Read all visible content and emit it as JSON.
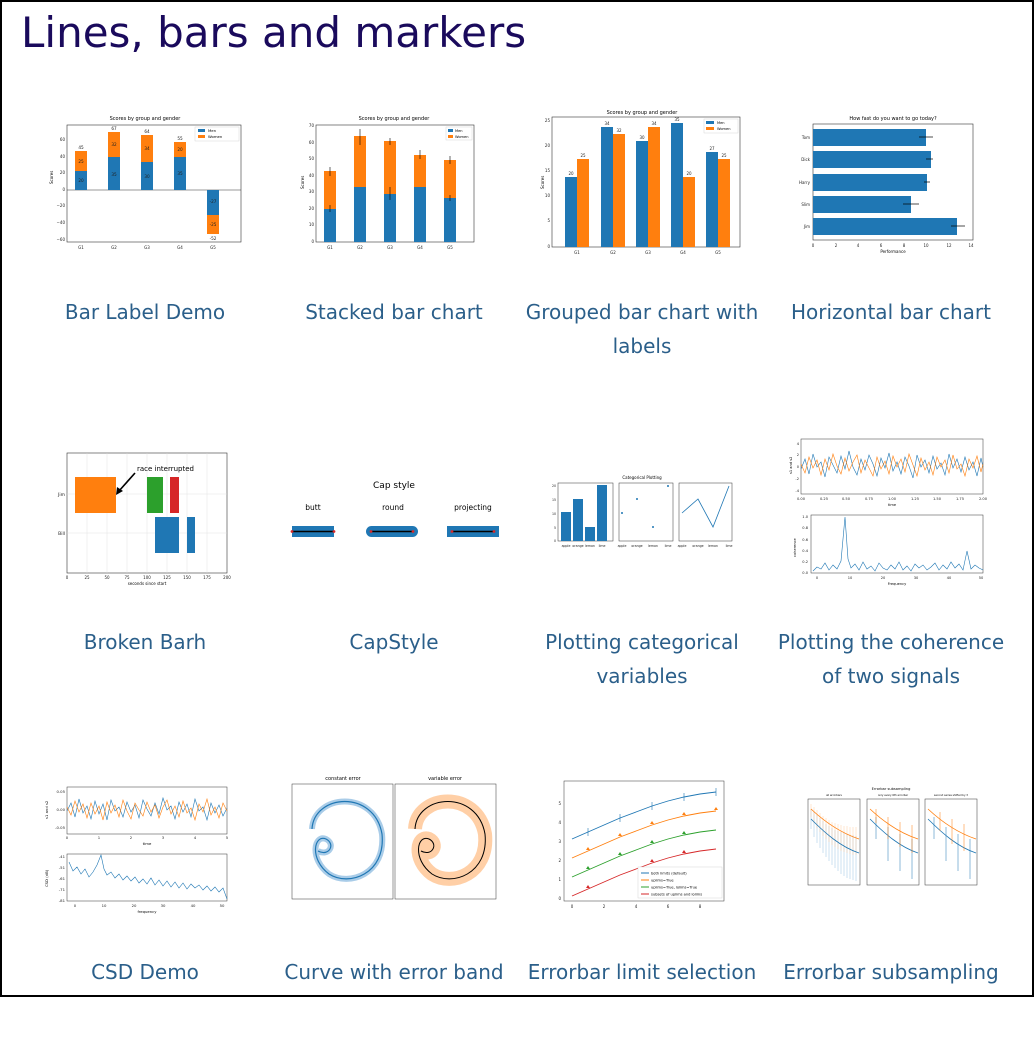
{
  "page": {
    "title": "Lines, bars and markers"
  },
  "colors": {
    "blue": "#1f77b4",
    "orange": "#ff7f0e",
    "green": "#2ca02c",
    "red": "#d62728",
    "link": "#2b5f8a",
    "title": "#1a0a5c"
  },
  "gallery": [
    {
      "caption": "Bar Label Demo",
      "chart": {
        "title": "Scores by group and gender",
        "ylabel": "Scores",
        "groups": [
          "G1",
          "G2",
          "G3",
          "G4",
          "G5"
        ],
        "ticks_y": [
          "60",
          "40",
          "20",
          "0",
          "−20",
          "−40",
          "−60"
        ],
        "men": [
          20,
          35,
          30,
          35,
          -27
        ],
        "women": [
          25,
          32,
          34,
          20,
          -25
        ],
        "totals": [
          "45",
          "67",
          "64",
          "55",
          "-52"
        ],
        "legend": [
          "Men",
          "Women"
        ]
      }
    },
    {
      "caption": "Stacked bar chart",
      "chart": {
        "title": "Scores by group and gender",
        "ylabel": "Scores",
        "groups": [
          "G1",
          "G2",
          "G3",
          "G4",
          "G5"
        ],
        "ticks_y": [
          "70",
          "60",
          "50",
          "40",
          "30",
          "20",
          "10",
          "0"
        ],
        "legend": [
          "Men",
          "Women"
        ]
      }
    },
    {
      "caption": "Grouped bar chart with labels",
      "chart": {
        "title": "Scores by group and gender",
        "ylabel": "Scores",
        "groups": [
          "G1",
          "G2",
          "G3",
          "G4",
          "G5"
        ],
        "men": [
          20,
          34,
          30,
          35,
          27
        ],
        "women": [
          25,
          32,
          34,
          20,
          25
        ],
        "ticks_y": [
          "25",
          "20",
          "15",
          "10",
          "5",
          "0"
        ],
        "legend": [
          "Men",
          "Women"
        ]
      }
    },
    {
      "caption": "Horizontal bar chart",
      "chart": {
        "title": "How fast do you want to go today?",
        "xlabel": "Performance",
        "people": [
          "Tom",
          "Dick",
          "Harry",
          "Slim",
          "Jim"
        ],
        "ticks_x": [
          "0",
          "2",
          "4",
          "6",
          "8",
          "10",
          "12",
          "14"
        ]
      }
    },
    {
      "caption": "Broken Barh",
      "chart": {
        "annotation": "race interrupted",
        "xlabel": "seconds since start",
        "ylabels": [
          "Jim",
          "Bill"
        ],
        "ticks_x": [
          "0",
          "25",
          "50",
          "75",
          "100",
          "125",
          "150",
          "175",
          "200"
        ]
      }
    },
    {
      "caption": "CapStyle",
      "chart": {
        "title": "Cap style",
        "styles": [
          "butt",
          "round",
          "projecting"
        ]
      }
    },
    {
      "caption": "Plotting categorical variables",
      "chart": {
        "title": "Categorical Plotting",
        "categories": [
          "apple",
          "orange",
          "lemon",
          "lime"
        ],
        "values": [
          10,
          15,
          5,
          20
        ],
        "ticks_y": [
          "20",
          "15",
          "10",
          "5",
          "0"
        ]
      }
    },
    {
      "caption": "Plotting the coherence of two signals",
      "chart": {
        "ylabel_top": "s1 and s2",
        "xlabel_top": "time",
        "ticks_x_top": [
          "0.00",
          "0.25",
          "0.50",
          "0.75",
          "1.00",
          "1.25",
          "1.50",
          "1.75",
          "2.00"
        ],
        "ticks_y_top": [
          "4",
          "2",
          "0",
          "-2",
          "-4"
        ],
        "ylabel_bottom": "coherence",
        "xlabel_bottom": "Frequency",
        "ticks_x_bottom": [
          "0",
          "10",
          "20",
          "30",
          "40",
          "50"
        ],
        "ticks_y_bottom": [
          "1.0",
          "0.8",
          "0.6",
          "0.4",
          "0.2",
          "0.0"
        ]
      }
    },
    {
      "caption": "CSD Demo",
      "chart": {
        "ylabel_top": "s1 and s2",
        "xlabel_top": "time",
        "ticks_x_top": [
          "0",
          "1",
          "2",
          "3",
          "4",
          "5"
        ],
        "ticks_y_top": [
          "0.05",
          "0.00",
          "-0.05"
        ],
        "ylabel_bottom": "CSD (dB)",
        "xlabel_bottom": "frequency",
        "ticks_x_bottom": [
          "0",
          "10",
          "20",
          "30",
          "40",
          "50"
        ],
        "ticks_y_bottom": [
          "-41",
          "-51",
          "-61",
          "-71",
          "-81"
        ]
      }
    },
    {
      "caption": "Curve with error band",
      "chart": {
        "title_left": "constant error",
        "title_right": "variable error"
      }
    },
    {
      "caption": "Errorbar limit selection",
      "chart": {
        "legend": [
          "both limits (default)",
          "uplims=True",
          "uplims=True, lolims=True",
          "subsets of uplims and lolims"
        ],
        "ticks_x": [
          "0",
          "2",
          "4",
          "6",
          "8"
        ],
        "ticks_y": [
          "5",
          "4",
          "3",
          "2",
          "1",
          "0"
        ]
      }
    },
    {
      "caption": "Errorbar subsampling",
      "chart": {
        "title": "Errorbar subsampling",
        "subtitles": [
          "all errorbars",
          "only every 6th errorbar",
          "second series shifted by 3"
        ]
      }
    }
  ]
}
